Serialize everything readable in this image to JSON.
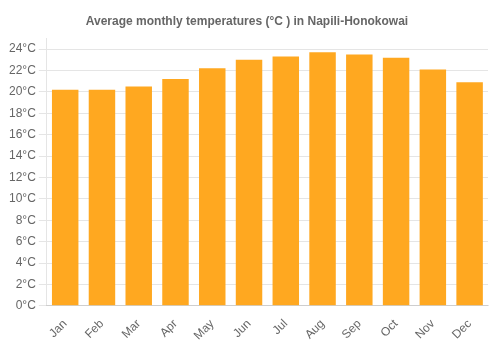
{
  "chart_data": {
    "type": "bar",
    "title": "Average monthly temperatures (°C ) in Napili-Honokowai",
    "categories": [
      "Jan",
      "Feb",
      "Mar",
      "Apr",
      "May",
      "Jun",
      "Jul",
      "Aug",
      "Sep",
      "Oct",
      "Nov",
      "Dec"
    ],
    "values": [
      20.2,
      20.2,
      20.5,
      21.2,
      22.2,
      23.0,
      23.3,
      23.7,
      23.5,
      23.2,
      22.1,
      20.9
    ],
    "color": "#FFA820",
    "ylim": [
      0,
      25
    ],
    "yticks": [
      {
        "value": 0,
        "label": "0°C"
      },
      {
        "value": 2,
        "label": "2°C"
      },
      {
        "value": 4,
        "label": "4°C"
      },
      {
        "value": 6,
        "label": "6°C"
      },
      {
        "value": 8,
        "label": "8°C"
      },
      {
        "value": 10,
        "label": "10°C"
      },
      {
        "value": 12,
        "label": "12°C"
      },
      {
        "value": 14,
        "label": "14°C"
      },
      {
        "value": 16,
        "label": "16°C"
      },
      {
        "value": 18,
        "label": "18°C"
      },
      {
        "value": 20,
        "label": "20°C"
      },
      {
        "value": 22,
        "label": "22°C"
      },
      {
        "value": 24,
        "label": "24°C"
      }
    ],
    "grid": true
  }
}
